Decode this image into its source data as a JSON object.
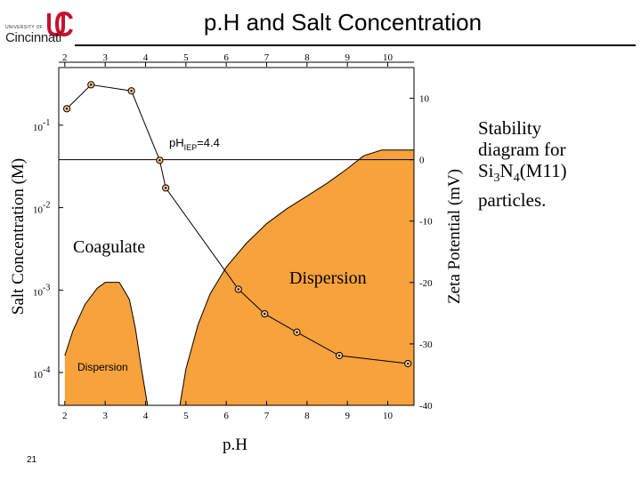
{
  "header": {
    "logo_small": "UNIVERSITY OF",
    "logo_big": "Cincinnati",
    "logo_mark": "UC",
    "brand_color": "#c8102e"
  },
  "slide": {
    "title": "p.H and Salt Concentration",
    "number": "21"
  },
  "caption": {
    "line1": "Stability",
    "line2": "diagram for",
    "line3_pre": "Si",
    "line3_sub1": "3",
    "line3_mid": "N",
    "line3_sub2": "4",
    "line3_post": "(M11)",
    "line4": "particles."
  },
  "chart_data": {
    "type": "line",
    "xlabel": "p.H",
    "ylabel": "Salt Concentration (M)",
    "y2label": "Zeta Potential (mV)",
    "xlim": [
      1.85,
      10.65
    ],
    "ylim": [
      4e-05,
      0.5
    ],
    "ylog": true,
    "y2lim": [
      -40,
      15
    ],
    "x_ticks_bottom": [
      "2",
      "3",
      "4",
      "5",
      "6",
      "7",
      "8",
      "9",
      "10"
    ],
    "x_ticks_top": [
      "2",
      "3",
      "4",
      "5",
      "6",
      "7",
      "8",
      "9",
      "10"
    ],
    "y_ticks_left": [
      {
        "base": "10",
        "exp": "-1",
        "value": 0.1
      },
      {
        "base": "10",
        "exp": "-2",
        "value": 0.01
      },
      {
        "base": "10",
        "exp": "-3",
        "value": 0.001
      },
      {
        "base": "10",
        "exp": "-4",
        "value": 0.0001
      }
    ],
    "y_ticks_right": [
      {
        "label": "10",
        "value": 10
      },
      {
        "label": "0",
        "value": 0
      },
      {
        "label": "-10",
        "value": -10
      },
      {
        "label": "-20",
        "value": -20
      },
      {
        "label": "-30",
        "value": -30
      },
      {
        "label": "-40",
        "value": -40
      }
    ],
    "iep_label": "pH",
    "iep_sub": "IEP",
    "iep_value": "=4.4",
    "iep_ph": 4.4,
    "regions": [
      {
        "name": "Coagulate",
        "color": "#ffffff"
      },
      {
        "name": "Dispersion",
        "color": "#f7a23c"
      },
      {
        "name": "Dispersion",
        "color": "#f7a23c"
      }
    ],
    "fill_color": "#f7a23c",
    "series": [
      {
        "axis": "right",
        "color": "#000000",
        "points": [
          {
            "x": 2.05,
            "y": 8.3
          },
          {
            "x": 2.65,
            "y": 12.2
          },
          {
            "x": 3.65,
            "y": 11.2
          },
          {
            "x": 4.35,
            "y": -0.1
          },
          {
            "x": 4.5,
            "y": -4.6
          },
          {
            "x": 6.3,
            "y": -21.1
          },
          {
            "x": 6.95,
            "y": -25.1
          },
          {
            "x": 7.75,
            "y": -28.1
          },
          {
            "x": 8.8,
            "y": -31.9
          },
          {
            "x": 10.5,
            "y": -33.2
          }
        ]
      }
    ],
    "boundary_main": [
      {
        "x": 4.85,
        "y": 4e-05
      },
      {
        "x": 5.0,
        "y": 0.00011
      },
      {
        "x": 5.3,
        "y": 0.00038
      },
      {
        "x": 5.6,
        "y": 0.0009
      },
      {
        "x": 6.0,
        "y": 0.0019
      },
      {
        "x": 6.5,
        "y": 0.0037
      },
      {
        "x": 7.0,
        "y": 0.0064
      },
      {
        "x": 7.5,
        "y": 0.0097
      },
      {
        "x": 8.0,
        "y": 0.0138
      },
      {
        "x": 8.5,
        "y": 0.0198
      },
      {
        "x": 9.0,
        "y": 0.0297
      },
      {
        "x": 9.4,
        "y": 0.0425
      },
      {
        "x": 9.85,
        "y": 0.05
      },
      {
        "x": 10.65,
        "y": 0.05
      }
    ],
    "boundary_small": [
      {
        "x": 2.0,
        "y": 0.00016
      },
      {
        "x": 2.2,
        "y": 0.00032
      },
      {
        "x": 2.5,
        "y": 0.00067
      },
      {
        "x": 2.8,
        "y": 0.00105
      },
      {
        "x": 3.0,
        "y": 0.00124
      },
      {
        "x": 3.35,
        "y": 0.00124
      },
      {
        "x": 3.6,
        "y": 0.00077
      },
      {
        "x": 3.75,
        "y": 0.00034
      },
      {
        "x": 3.9,
        "y": 0.00011
      },
      {
        "x": 4.05,
        "y": 4e-05
      }
    ]
  }
}
